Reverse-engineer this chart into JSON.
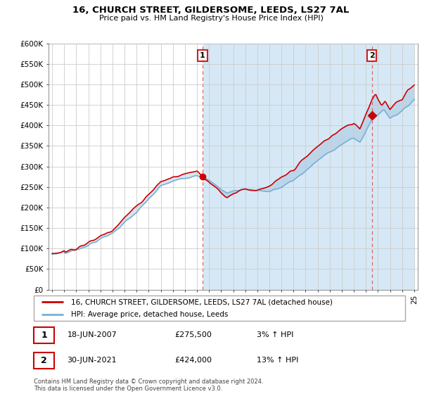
{
  "title": "16, CHURCH STREET, GILDERSOME, LEEDS, LS27 7AL",
  "subtitle": "Price paid vs. HM Land Registry's House Price Index (HPI)",
  "legend_line1": "16, CHURCH STREET, GILDERSOME, LEEDS, LS27 7AL (detached house)",
  "legend_line2": "HPI: Average price, detached house, Leeds",
  "sale1_date": "18-JUN-2007",
  "sale1_price": "£275,500",
  "sale1_hpi": "3% ↑ HPI",
  "sale1_year": 2007.46,
  "sale1_value": 275500,
  "sale2_date": "30-JUN-2021",
  "sale2_price": "£424,000",
  "sale2_hpi": "13% ↑ HPI",
  "sale2_year": 2021.5,
  "sale2_value": 424000,
  "footer": "Contains HM Land Registry data © Crown copyright and database right 2024.\nThis data is licensed under the Open Government Licence v3.0.",
  "line_color_red": "#cc0000",
  "line_color_blue": "#7aafd4",
  "fill_color": "#d6e8f5",
  "marker_dashed_color": "#dd4444",
  "background_color": "#ffffff",
  "grid_color": "#cccccc",
  "ylim": [
    0,
    600000
  ],
  "yticks": [
    0,
    50000,
    100000,
    150000,
    200000,
    250000,
    300000,
    350000,
    400000,
    450000,
    500000,
    550000,
    600000
  ],
  "ytick_labels": [
    "£0",
    "£50K",
    "£100K",
    "£150K",
    "£200K",
    "£250K",
    "£300K",
    "£350K",
    "£400K",
    "£450K",
    "£500K",
    "£550K",
    "£600K"
  ],
  "xtick_years": [
    1995,
    1996,
    1997,
    1998,
    1999,
    2000,
    2001,
    2002,
    2003,
    2004,
    2005,
    2006,
    2007,
    2008,
    2009,
    2010,
    2011,
    2012,
    2013,
    2014,
    2015,
    2016,
    2017,
    2018,
    2019,
    2020,
    2021,
    2022,
    2023,
    2024,
    2025
  ]
}
